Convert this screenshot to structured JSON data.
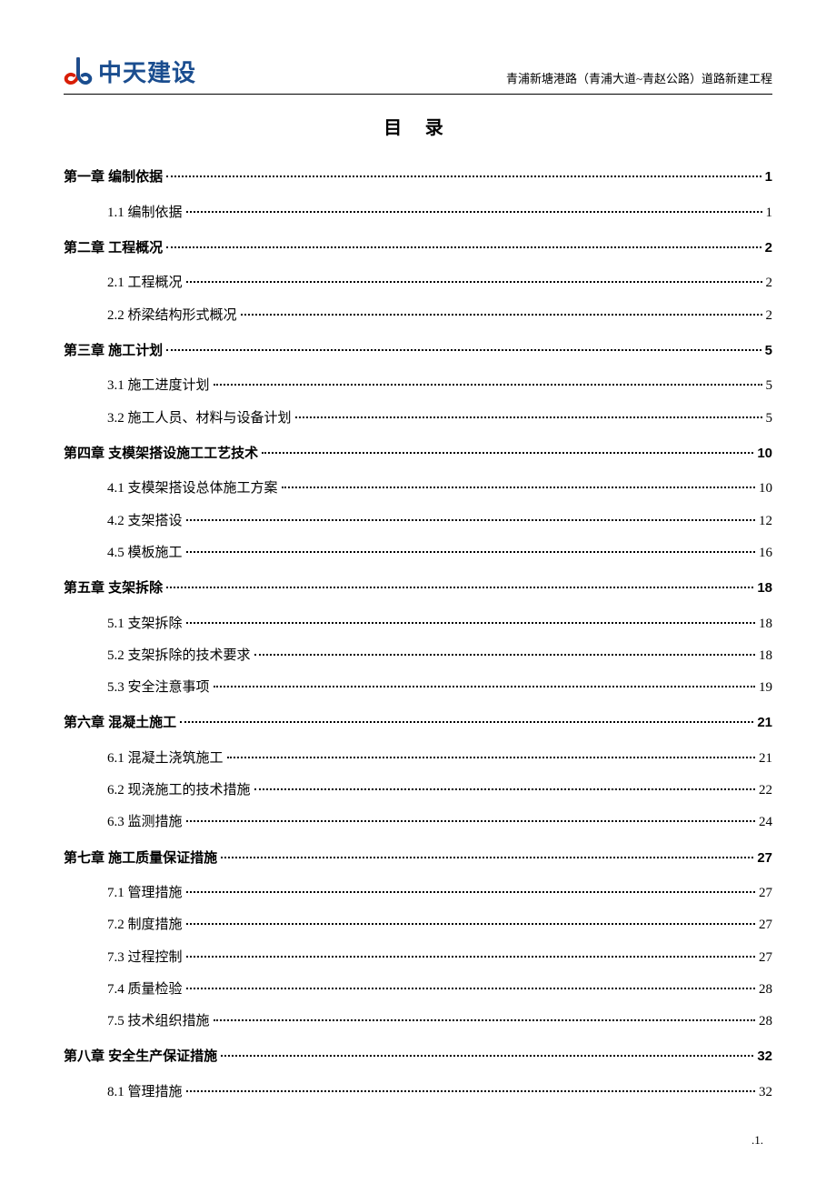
{
  "header": {
    "logo_text": "中天建设",
    "subtitle": "青浦新塘港路（青浦大道~青赵公路）道路新建工程",
    "logo_color_red": "#d81e06",
    "logo_color_blue": "#1a4d8f"
  },
  "title": "目 录",
  "page_number": ".1.",
  "toc": [
    {
      "type": "chapter",
      "label": "第一章 编制依据",
      "page": "1",
      "sections": [
        {
          "label": "1.1 编制依据",
          "page": "1"
        }
      ]
    },
    {
      "type": "chapter",
      "label": "第二章 工程概况",
      "page": "2",
      "sections": [
        {
          "label": "2.1 工程概况",
          "page": "2"
        },
        {
          "label": "2.2 桥梁结构形式概况",
          "page": "2"
        }
      ]
    },
    {
      "type": "chapter",
      "label": "第三章 施工计划",
      "page": "5",
      "sections": [
        {
          "label": "3.1 施工进度计划",
          "page": "5"
        },
        {
          "label": "3.2 施工人员、材料与设备计划",
          "page": "5"
        }
      ]
    },
    {
      "type": "chapter",
      "label": "第四章 支模架搭设施工工艺技术",
      "page": "10",
      "sections": [
        {
          "label": "4.1 支模架搭设总体施工方案",
          "page": "10"
        },
        {
          "label": "4.2 支架搭设",
          "page": "12"
        },
        {
          "label": "4.5 模板施工",
          "page": "16"
        }
      ]
    },
    {
      "type": "chapter",
      "label": "第五章 支架拆除",
      "page": "18",
      "sections": [
        {
          "label": "5.1 支架拆除",
          "page": "18"
        },
        {
          "label": "5.2 支架拆除的技术要求",
          "page": "18"
        },
        {
          "label": "5.3 安全注意事项",
          "page": "19"
        }
      ]
    },
    {
      "type": "chapter",
      "label": "第六章  混凝土施工",
      "page": "21",
      "sections": [
        {
          "label": "6.1 混凝土浇筑施工",
          "page": "21"
        },
        {
          "label": "6.2 现浇施工的技术措施",
          "page": "22"
        },
        {
          "label": "6.3 监测措施",
          "page": "24"
        }
      ]
    },
    {
      "type": "chapter",
      "label": "第七章 施工质量保证措施",
      "page": "27",
      "sections": [
        {
          "label": "7.1 管理措施",
          "page": "27"
        },
        {
          "label": "7.2 制度措施",
          "page": "27"
        },
        {
          "label": "7.3 过程控制",
          "page": "27"
        },
        {
          "label": "7.4 质量检验",
          "page": "28"
        },
        {
          "label": "7.5 技术组织措施",
          "page": "28"
        }
      ]
    },
    {
      "type": "chapter",
      "label": "第八章  安全生产保证措施",
      "page": "32",
      "sections": [
        {
          "label": "8.1 管理措施",
          "page": "32"
        }
      ]
    }
  ]
}
